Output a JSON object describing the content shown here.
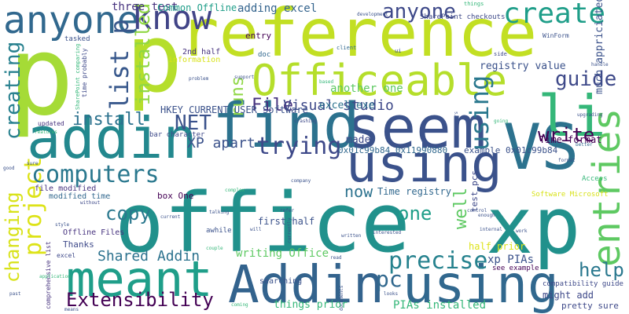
{
  "palette": [
    "#440154",
    "#482878",
    "#3e4989",
    "#31688e",
    "#26828e",
    "#1f9e89",
    "#35b779",
    "#6ece58",
    "#b5de2b",
    "#fde725"
  ],
  "words": [
    {
      "text": "office",
      "color": "#21918c"
    },
    {
      "text": "xp",
      "color": "#21918c"
    },
    {
      "text": "reference",
      "color": "#c2df23"
    },
    {
      "text": "p",
      "color": "#a5db36"
    },
    {
      "text": "p",
      "color": "#b5de2b"
    },
    {
      "text": "VS",
      "color": "#2c728e"
    },
    {
      "text": "seem",
      "color": "#3b528b"
    },
    {
      "text": "using",
      "color": "#3b528b"
    },
    {
      "text": "using",
      "color": "#31688e"
    },
    {
      "text": "addin",
      "color": "#23888e"
    },
    {
      "text": "Addin",
      "color": "#33638d"
    },
    {
      "text": "meant",
      "color": "#1f9e89"
    },
    {
      "text": "find",
      "color": "#2c728e"
    },
    {
      "text": "Officeable",
      "color": "#b5de2b"
    },
    {
      "text": "li",
      "color": "#35b779"
    },
    {
      "text": "anyone",
      "color": "#31688e"
    },
    {
      "text": "know",
      "color": "#414487"
    },
    {
      "text": "create",
      "color": "#1f9e89"
    },
    {
      "text": "anyone",
      "color": "#3e4989"
    },
    {
      "text": "entries",
      "color": "#5ec962"
    },
    {
      "text": "guide",
      "color": "#3e4989"
    },
    {
      "text": "project",
      "color": "#dde318"
    },
    {
      "text": "changing",
      "color": "#d8e219"
    },
    {
      "text": "creating",
      "color": "#27808e"
    },
    {
      "text": "list p",
      "color": "#38588c"
    },
    {
      "text": "installed",
      "color": "#8fd744"
    },
    {
      "text": "computers",
      "color": "#2a788e"
    },
    {
      "text": "trying",
      "color": "#3e4989"
    },
    {
      "text": "precise",
      "color": "#26828e"
    },
    {
      "text": "using",
      "color": "#2a788e"
    },
    {
      "text": "Extensibility",
      "color": "#440154"
    },
    {
      "text": "pc",
      "color": "#31688e"
    },
    {
      "text": "help",
      "color": "#2a788e"
    },
    {
      "text": "write",
      "color": "#440154"
    },
    {
      "text": "NET",
      "color": "#3b528b"
    },
    {
      "text": "install",
      "color": "#2c728e"
    },
    {
      "text": "copy",
      "color": "#2a788e"
    },
    {
      "text": "runs",
      "color": "#8fd744"
    },
    {
      "text": "File",
      "color": "#46327e"
    },
    {
      "text": "Visual studio",
      "color": "#3e4989"
    },
    {
      "text": "XP apart",
      "color": "#3b528b"
    },
    {
      "text": "Shared Addin",
      "color": "#2c728e"
    },
    {
      "text": "one",
      "color": "#1f9e89"
    },
    {
      "text": "now",
      "color": "#2c728e"
    },
    {
      "text": "well",
      "color": "#5ec962"
    },
    {
      "text": "three test",
      "color": "#46327e"
    },
    {
      "text": "Common Offline",
      "color": "#1f9e89"
    },
    {
      "text": "adding excel",
      "color": "#33638d"
    },
    {
      "text": "excel exe",
      "color": "#2c728e"
    },
    {
      "text": "another one",
      "color": "#5ec962"
    },
    {
      "text": "registry value",
      "color": "#3b528b"
    },
    {
      "text": "much appriciated",
      "color": "#3b528b"
    },
    {
      "text": "Time format",
      "color": "#440154"
    },
    {
      "text": "0x01c99b84 0x11990880",
      "color": "#31688e"
    },
    {
      "text": "example 0x01c99b84",
      "color": "#3b528b"
    },
    {
      "text": "HKEY CURRENT USER Software",
      "color": "#3b528b"
    },
    {
      "text": "Time registry",
      "color": "#31688e"
    },
    {
      "text": "made",
      "color": "#3e4989"
    },
    {
      "text": "test pcs",
      "color": "#3e4989"
    },
    {
      "text": "writing Office",
      "color": "#5ec962"
    },
    {
      "text": "first half",
      "color": "#3b528b"
    },
    {
      "text": "half prior",
      "color": "#dde318"
    },
    {
      "text": "xp PIAs",
      "color": "#3b528b"
    },
    {
      "text": "things prior",
      "color": "#35b779"
    },
    {
      "text": "PIAs installed",
      "color": "#35b779"
    },
    {
      "text": "might add",
      "color": "#3e4989"
    },
    {
      "text": "pretty sure",
      "color": "#3e4989"
    },
    {
      "text": "Thanks",
      "color": "#3e4989"
    },
    {
      "text": "Offline Files",
      "color": "#46327e"
    },
    {
      "text": "modified time",
      "color": "#31688e"
    },
    {
      "text": "file modified",
      "color": "#46327e"
    },
    {
      "text": "box One",
      "color": "#440154"
    },
    {
      "text": "2nd half",
      "color": "#46327e"
    },
    {
      "text": "entry",
      "color": "#440154"
    },
    {
      "text": "information",
      "color": "#d8e219"
    },
    {
      "text": "SharePoint checkouts",
      "color": "#3e4989"
    },
    {
      "text": "WinForm",
      "color": "#3b528b"
    },
    {
      "text": "tasked",
      "color": "#3b528b"
    },
    {
      "text": "bar character",
      "color": "#3e4989"
    },
    {
      "text": "Software Microsoft",
      "color": "#d8e219"
    },
    {
      "text": "compatibility guide",
      "color": "#3e4989"
    },
    {
      "text": "see example",
      "color": "#440154"
    },
    {
      "text": "comprehensive list",
      "color": "#46327e"
    },
    {
      "text": "updated",
      "color": "#46327e"
    },
    {
      "text": "Access",
      "color": "#35b779"
    },
    {
      "text": "doc",
      "color": "#31688e"
    },
    {
      "text": "awhile",
      "color": "#3b528b"
    },
    {
      "text": "searching",
      "color": "#3b528b"
    },
    {
      "text": "excel",
      "color": "#3e4989"
    },
    {
      "text": "time probably",
      "color": "#3e4989"
    },
    {
      "text": "SharePoint comparing",
      "color": "#35b779"
    },
    {
      "text": "client",
      "color": "#31688e"
    },
    {
      "text": "side",
      "color": "#3e4989"
    },
    {
      "text": "things",
      "color": "#35b779"
    },
    {
      "text": "development",
      "color": "#3b528b"
    },
    {
      "text": "problem",
      "color": "#3b528b"
    },
    {
      "text": "support",
      "color": "#3b528b"
    },
    {
      "text": "handle",
      "color": "#3b528b"
    },
    {
      "text": "upgrading",
      "color": "#3b528b"
    },
    {
      "text": "crashing",
      "color": "#3e4989"
    },
    {
      "text": "features",
      "color": "#35b779"
    },
    {
      "text": "going",
      "color": "#35b779"
    },
    {
      "text": "better",
      "color": "#31688e"
    },
    {
      "text": "format",
      "color": "#3b528b"
    },
    {
      "text": "sure",
      "color": "#3b528b"
    },
    {
      "text": "good",
      "color": "#3b528b"
    },
    {
      "text": "style",
      "color": "#3b528b"
    },
    {
      "text": "without",
      "color": "#3e4989"
    },
    {
      "text": "complex",
      "color": "#35b779"
    },
    {
      "text": "talking",
      "color": "#3b528b"
    },
    {
      "text": "refer",
      "color": "#3b528b"
    },
    {
      "text": "company",
      "color": "#3b528b"
    },
    {
      "text": "control",
      "color": "#3b528b"
    },
    {
      "text": "enough",
      "color": "#3b528b"
    },
    {
      "text": "internal",
      "color": "#3b528b"
    },
    {
      "text": "work",
      "color": "#3b528b"
    },
    {
      "text": "interested",
      "color": "#3b528b"
    },
    {
      "text": "written",
      "color": "#3b528b"
    },
    {
      "text": "current",
      "color": "#3b528b"
    },
    {
      "text": "couple",
      "color": "#35b779"
    },
    {
      "text": "application",
      "color": "#35b779"
    },
    {
      "text": "past",
      "color": "#3b528b"
    },
    {
      "text": "means",
      "color": "#3b528b"
    },
    {
      "text": "coming",
      "color": "#35b779"
    },
    {
      "text": "read",
      "color": "#3b528b"
    },
    {
      "text": "documents",
      "color": "#3b528b"
    },
    {
      "text": "looks",
      "color": "#3b528b"
    },
    {
      "text": "based",
      "color": "#35b779"
    },
    {
      "text": "currently",
      "color": "#3b528b"
    },
    {
      "text": "will",
      "color": "#3b528b"
    },
    {
      "text": "years",
      "color": "#3b528b"
    },
    {
      "text": "ui",
      "color": "#3b528b"
    }
  ]
}
